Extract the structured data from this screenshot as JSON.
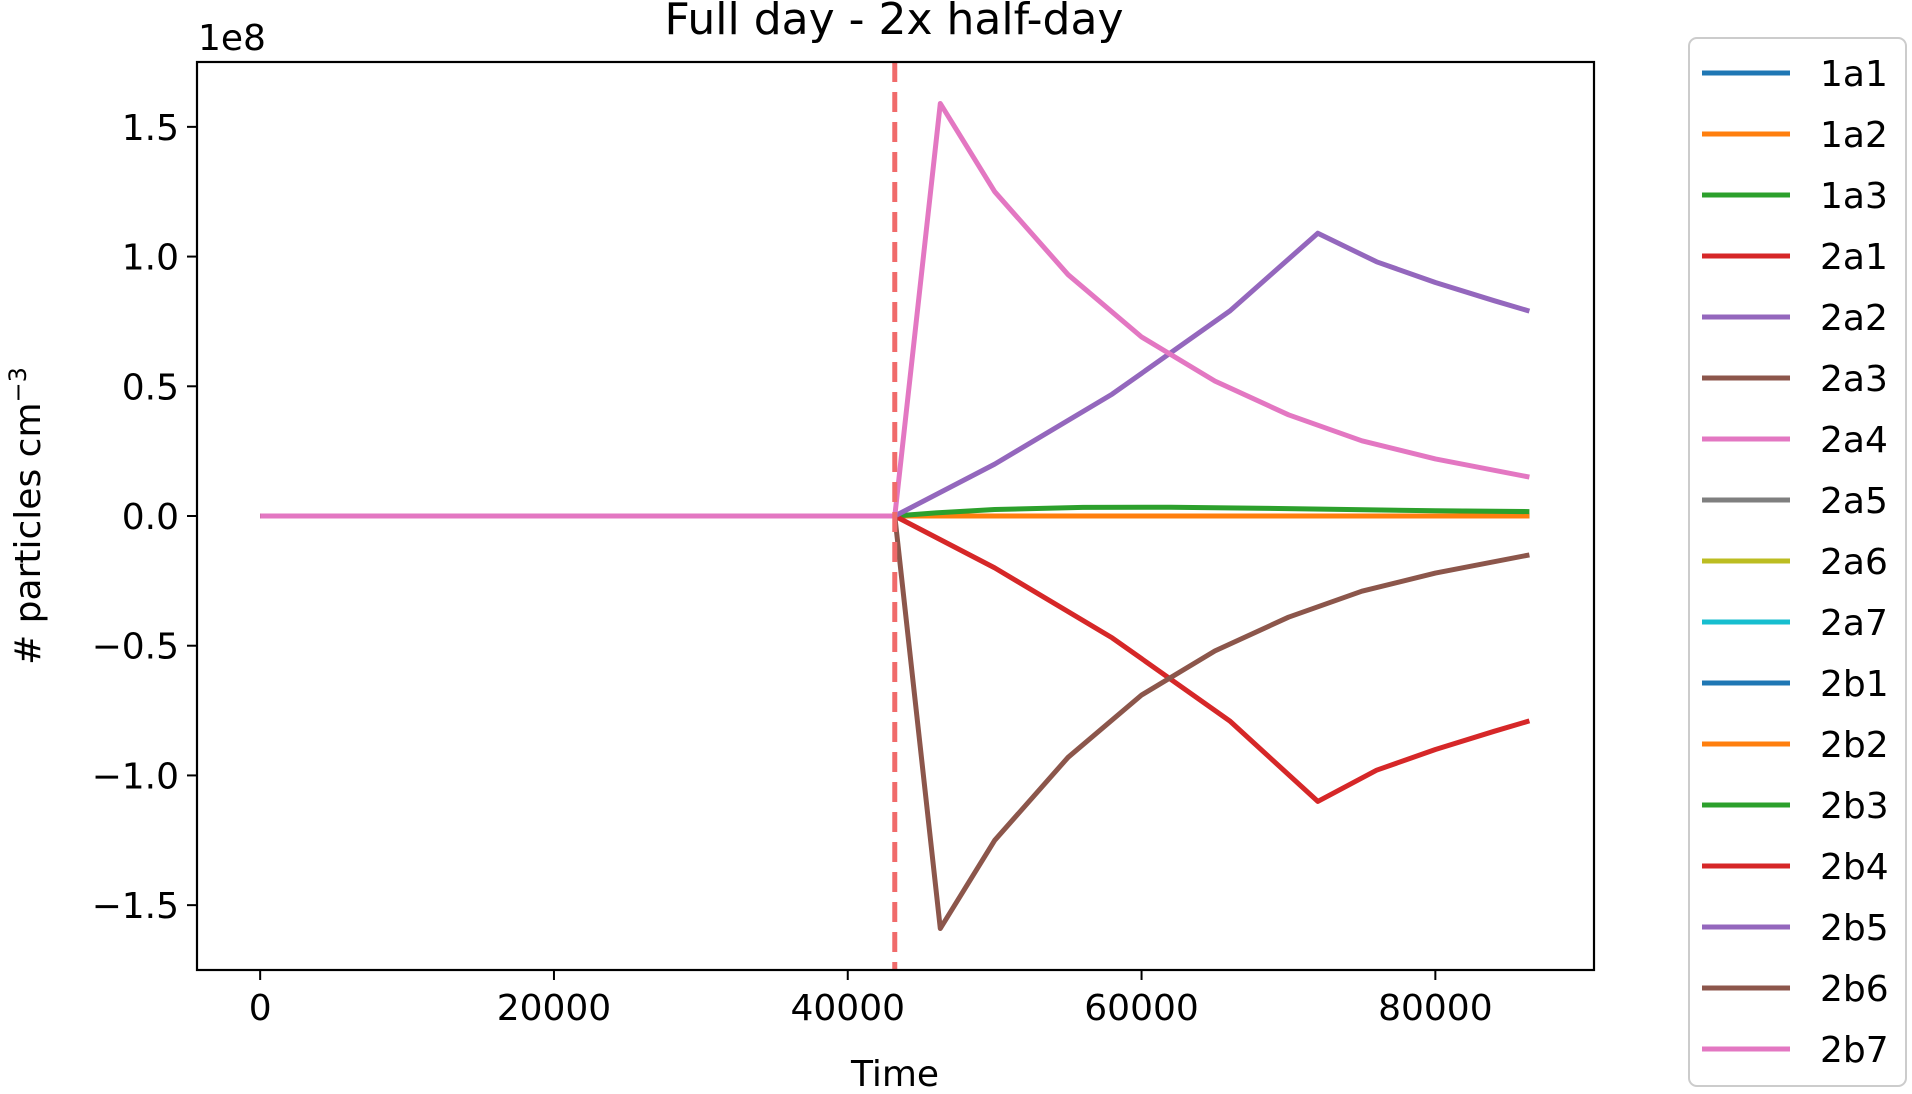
{
  "chart_data": {
    "type": "line",
    "title": "Full day - 2x half-day",
    "xlabel": "Time",
    "ylabel": "# particles cm",
    "ylabel_unit_exponent": "−3",
    "y_offset_label": "1e8",
    "xlim": [
      -4300,
      90800
    ],
    "ylim": [
      -1.75,
      1.75
    ],
    "x_ticks": [
      0,
      20000,
      40000,
      60000,
      80000
    ],
    "x_tick_labels": [
      "0",
      "20000",
      "40000",
      "60000",
      "80000"
    ],
    "y_ticks": [
      -1.5,
      -1.0,
      -0.5,
      0.0,
      0.5,
      1.0,
      1.5
    ],
    "y_tick_labels": [
      "−1.5",
      "−1.0",
      "−0.5",
      "0.0",
      "0.5",
      "1.0",
      "1.5"
    ],
    "grid": false,
    "legend_position": "outside-right",
    "vline": {
      "x": 43200,
      "color": "#f06b6b",
      "style": "dashed"
    },
    "series": [
      {
        "name": "1a1",
        "color": "#1f77b4",
        "x": [
          0,
          43200,
          86400
        ],
        "y": [
          0,
          0,
          0
        ]
      },
      {
        "name": "1a2",
        "color": "#ff7f0e",
        "x": [
          0,
          43200,
          86400
        ],
        "y": [
          0,
          0,
          0
        ]
      },
      {
        "name": "1a3",
        "color": "#2ca02c",
        "x": [
          0,
          43200,
          86400
        ],
        "y": [
          0,
          0,
          0
        ]
      },
      {
        "name": "2a1",
        "color": "#d62728",
        "x": [
          0,
          43200,
          86400
        ],
        "y": [
          0,
          0,
          0
        ]
      },
      {
        "name": "2a2",
        "color": "#9467bd",
        "x": [
          0,
          43200,
          86400
        ],
        "y": [
          0,
          0,
          0
        ]
      },
      {
        "name": "2a3",
        "color": "#8c564b",
        "x": [
          0,
          43200,
          86400
        ],
        "y": [
          0,
          0,
          0
        ]
      },
      {
        "name": "2a4",
        "color": "#e377c2",
        "x": [
          0,
          43200,
          86400
        ],
        "y": [
          0,
          0,
          0
        ]
      },
      {
        "name": "2a5",
        "color": "#7f7f7f",
        "x": [
          0,
          43200,
          86400
        ],
        "y": [
          0,
          0,
          0
        ]
      },
      {
        "name": "2a6",
        "color": "#bcbd22",
        "x": [
          0,
          43200,
          86400
        ],
        "y": [
          0,
          0,
          0
        ]
      },
      {
        "name": "2a7",
        "color": "#17becf",
        "x": [
          0,
          43200,
          86400
        ],
        "y": [
          0,
          0,
          0
        ]
      },
      {
        "name": "2b1",
        "color": "#1f77b4",
        "x": [
          0,
          43200,
          86400
        ],
        "y": [
          0,
          0,
          0
        ]
      },
      {
        "name": "2b2",
        "color": "#ff7f0e",
        "x": [
          0,
          43200,
          86400
        ],
        "y": [
          0,
          0,
          0
        ]
      },
      {
        "name": "2b3",
        "color": "#2ca02c",
        "x": [
          0,
          43200,
          46000,
          50000,
          56000,
          62000,
          68000,
          74000,
          80000,
          86400
        ],
        "y": [
          0,
          0,
          0.012,
          0.025,
          0.033,
          0.034,
          0.03,
          0.025,
          0.02,
          0.017
        ]
      },
      {
        "name": "2b4",
        "color": "#d62728",
        "x": [
          0,
          43200,
          50000,
          58000,
          66000,
          72000,
          76000,
          80000,
          84000,
          86400
        ],
        "y": [
          0,
          0,
          -0.2,
          -0.47,
          -0.79,
          -1.1,
          -0.98,
          -0.9,
          -0.83,
          -0.79
        ]
      },
      {
        "name": "2b5",
        "color": "#9467bd",
        "x": [
          0,
          43200,
          50000,
          58000,
          66000,
          72000,
          76000,
          80000,
          84000,
          86400
        ],
        "y": [
          0,
          0,
          0.2,
          0.47,
          0.79,
          1.09,
          0.98,
          0.9,
          0.83,
          0.79
        ]
      },
      {
        "name": "2b6",
        "color": "#8c564b",
        "x": [
          0,
          43200,
          46300,
          50000,
          55000,
          60000,
          65000,
          70000,
          75000,
          80000,
          86400
        ],
        "y": [
          0,
          0,
          -1.59,
          -1.25,
          -0.93,
          -0.69,
          -0.52,
          -0.39,
          -0.29,
          -0.22,
          -0.15
        ]
      },
      {
        "name": "2b7",
        "color": "#e377c2",
        "x": [
          0,
          43200,
          46300,
          50000,
          55000,
          60000,
          65000,
          70000,
          75000,
          80000,
          86400
        ],
        "y": [
          0,
          0,
          1.59,
          1.25,
          0.93,
          0.69,
          0.52,
          0.39,
          0.29,
          0.22,
          0.15
        ]
      }
    ]
  }
}
